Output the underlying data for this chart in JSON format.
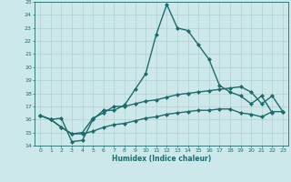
{
  "title": "",
  "xlabel": "Humidex (Indice chaleur)",
  "xlim": [
    -0.5,
    23.5
  ],
  "ylim": [
    14,
    25
  ],
  "yticks": [
    14,
    15,
    16,
    17,
    18,
    19,
    20,
    21,
    22,
    23,
    24,
    25
  ],
  "xticks": [
    0,
    1,
    2,
    3,
    4,
    5,
    6,
    7,
    8,
    9,
    10,
    11,
    12,
    13,
    14,
    15,
    16,
    17,
    18,
    19,
    20,
    21,
    22,
    23
  ],
  "bg_color": "#cde8ea",
  "grid_color": "#b0d0d2",
  "line_color": "#1e6b6b",
  "series": [
    {
      "x": [
        0,
        1,
        2,
        3,
        4,
        5,
        6,
        7,
        8,
        9,
        10,
        11,
        12,
        13,
        14,
        15,
        16,
        17,
        18,
        19,
        20,
        21,
        22
      ],
      "y": [
        16.3,
        16.0,
        16.1,
        14.3,
        14.4,
        16.0,
        16.7,
        16.7,
        17.1,
        18.3,
        19.5,
        22.5,
        24.8,
        23.0,
        22.8,
        21.7,
        20.6,
        18.6,
        18.1,
        17.8,
        17.2,
        17.8,
        16.5
      ],
      "marker": "D",
      "markersize": 2.0,
      "linewidth": 1.0
    },
    {
      "x": [
        0,
        1,
        2,
        3,
        4,
        5,
        6,
        7,
        8,
        9,
        10,
        11,
        12,
        13,
        14,
        15,
        16,
        17,
        18,
        19,
        20,
        21,
        22,
        23
      ],
      "y": [
        16.3,
        16.0,
        15.4,
        14.9,
        15.0,
        16.1,
        16.5,
        17.0,
        17.0,
        17.2,
        17.4,
        17.5,
        17.7,
        17.9,
        18.0,
        18.1,
        18.2,
        18.3,
        18.4,
        18.5,
        18.1,
        17.2,
        17.8,
        16.6
      ],
      "marker": "D",
      "markersize": 2.0,
      "linewidth": 1.0
    },
    {
      "x": [
        0,
        1,
        2,
        3,
        4,
        5,
        6,
        7,
        8,
        9,
        10,
        11,
        12,
        13,
        14,
        15,
        16,
        17,
        18,
        19,
        20,
        21,
        22,
        23
      ],
      "y": [
        16.3,
        16.0,
        15.4,
        14.9,
        14.9,
        15.1,
        15.4,
        15.6,
        15.7,
        15.9,
        16.1,
        16.2,
        16.4,
        16.5,
        16.6,
        16.7,
        16.7,
        16.8,
        16.8,
        16.5,
        16.4,
        16.2,
        16.6,
        16.6
      ],
      "marker": "D",
      "markersize": 2.0,
      "linewidth": 1.0
    }
  ]
}
